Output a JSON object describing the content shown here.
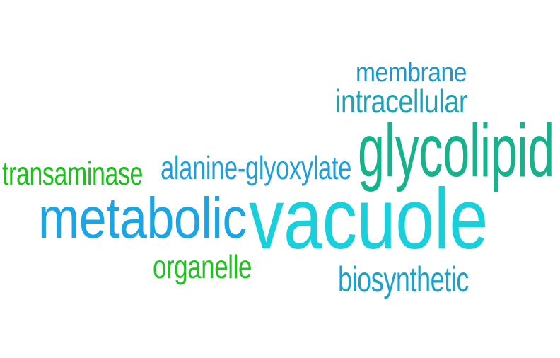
{
  "words": [
    {
      "text": "vacuole",
      "color": "#17d0dc"
    },
    {
      "text": "metabolic",
      "color": "#1aa6e6"
    },
    {
      "text": "glycolipid",
      "color": "#14b38c"
    },
    {
      "text": "alanine-glyoxylate",
      "color": "#1c9fdb"
    },
    {
      "text": "transaminase",
      "color": "#1cbf1c"
    },
    {
      "text": "intracellular",
      "color": "#1aa3b6"
    },
    {
      "text": "membrane",
      "color": "#1a99cf"
    },
    {
      "text": "organelle",
      "color": "#1fc21f"
    },
    {
      "text": "biosynthetic",
      "color": "#17a3cd"
    }
  ]
}
